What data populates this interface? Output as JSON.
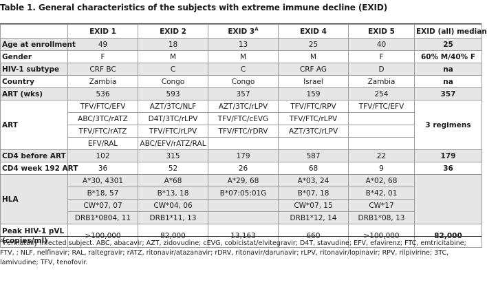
{
  "title": "Table 1. General characteristics of the subjects with extreme immune decline (EXID)",
  "columns": [
    "",
    "EXID 1",
    "EXID 2",
    "EXID 3",
    "EXID 4",
    "EXID 5",
    "EXID (all) median"
  ],
  "col3_sup": "A",
  "rows": {
    "age": {
      "label": "Age at enrollment",
      "vals": [
        "49",
        "18",
        "13",
        "25",
        "40"
      ],
      "median": "25"
    },
    "gender": {
      "label": "Gender",
      "vals": [
        "F",
        "M",
        "M",
        "M",
        "F"
      ],
      "median": "60% M/40% F"
    },
    "subtype": {
      "label": "HIV-1 subtype",
      "vals": [
        "CRF BC",
        "C",
        "C",
        "CRF AG",
        "D"
      ],
      "median": "na"
    },
    "country": {
      "label": "Country",
      "vals": [
        "Zambia",
        "Congo",
        "Congo",
        "Israel",
        "Zambia"
      ],
      "median": "na"
    },
    "artwks": {
      "label": "ART (wks)",
      "vals": [
        "536",
        "593",
        "357",
        "159",
        "254"
      ],
      "median": "357"
    },
    "art": {
      "label": "ART",
      "lines": [
        [
          "TFV/FTC/EFV",
          "AZT/3TC/NLF",
          "AZT/3TC/rLPV",
          "TFV/FTC/RPV",
          "TFV/FTC/EFV"
        ],
        [
          "ABC/3TC/rATZ",
          "D4T/3TC/rLPV",
          "TFV/FTC/cEVG",
          "TFV/FTC/rLPV",
          ""
        ],
        [
          "TFV/FTC/rATZ",
          "TFV/FTC/rLPV",
          "TFV/FTC/rDRV",
          "AZT/3TC/rLPV",
          ""
        ],
        [
          "EFV/RAL",
          "ABC/EFV/rATZ/RAL",
          "",
          "",
          ""
        ]
      ],
      "median": "3 regimens"
    },
    "cd4before": {
      "label": "CD4 before ART",
      "vals": [
        "102",
        "315",
        "179",
        "587",
        "22"
      ],
      "median": "179"
    },
    "cd4wk": {
      "label": "CD4 week 192 ART",
      "vals": [
        "36",
        "52",
        "26",
        "68",
        "9"
      ],
      "median": "36"
    },
    "hla": {
      "label": "HLA",
      "lines": [
        [
          "A*30, 4301",
          "A*68",
          "A*29, 68",
          "A*03, 24",
          "A*02, 68"
        ],
        [
          "B*18, 57",
          "B*13, 18",
          "B*07:05:01G",
          "B*07, 18",
          "B*42, 01"
        ],
        [
          "CW*07, 07",
          "CW*04, 06",
          "",
          "CW*07, 15",
          "CW*17"
        ],
        [
          "DRB1*0804, 11",
          "DRB1*11, 13",
          "",
          "DRB1*12, 14",
          "DRB1*08, 13"
        ]
      ],
      "median": ""
    },
    "pvl": {
      "label_line1": "Peak HIV-1 pVL",
      "label_line2": "(copies/ml)",
      "vals": [
        ">100,000",
        "82,000",
        "13,163",
        "660",
        ">100,000"
      ],
      "median": "82,000"
    }
  },
  "footnote": {
    "marker": "A",
    "text": "Perinatally infected subject. ABC, abacavir; AZT, zidovudine; cEVG, cobicistat/elvitegravir; D4T, stavudine; EFV, efavirenz; FTC, emtricitabine; FTV, ; NLF, nelfinavir; RAL, raltegravir; rATZ, ritonavir/atazanavir; rDRV, ritonavir/darunavir; rLPV, ritonavir/lopinavir; RPV, rilpivirine; 3TC, lamivudine; TFV, tenofovir."
  }
}
